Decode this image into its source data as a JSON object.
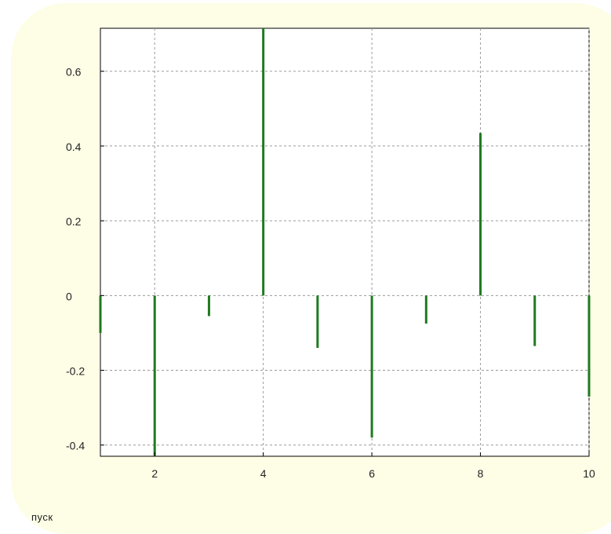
{
  "caption": "пуск",
  "chart_data": {
    "type": "stem",
    "title": "",
    "xlabel": "",
    "ylabel": "",
    "xlim": [
      1,
      10
    ],
    "ylim": [
      -0.43,
      0.715
    ],
    "grid": true,
    "x": [
      1,
      2,
      3,
      4,
      5,
      6,
      7,
      8,
      9,
      10
    ],
    "y": [
      -0.1,
      -0.43,
      -0.055,
      0.715,
      -0.14,
      -0.38,
      -0.075,
      0.435,
      -0.135,
      -0.27
    ],
    "x_ticks": [
      2,
      4,
      6,
      8,
      10
    ],
    "x_tick_labels": [
      "2",
      "4",
      "6",
      "8",
      "10"
    ],
    "y_ticks": [
      0.6,
      0.4,
      0.2,
      0,
      -0.2,
      -0.4
    ],
    "y_tick_labels": [
      "0.6",
      "0.4",
      "0.2",
      "0",
      "-0.2",
      "-0.4"
    ],
    "stem_color": "#1f7a1f",
    "grid_color": "#9a9a9a"
  }
}
